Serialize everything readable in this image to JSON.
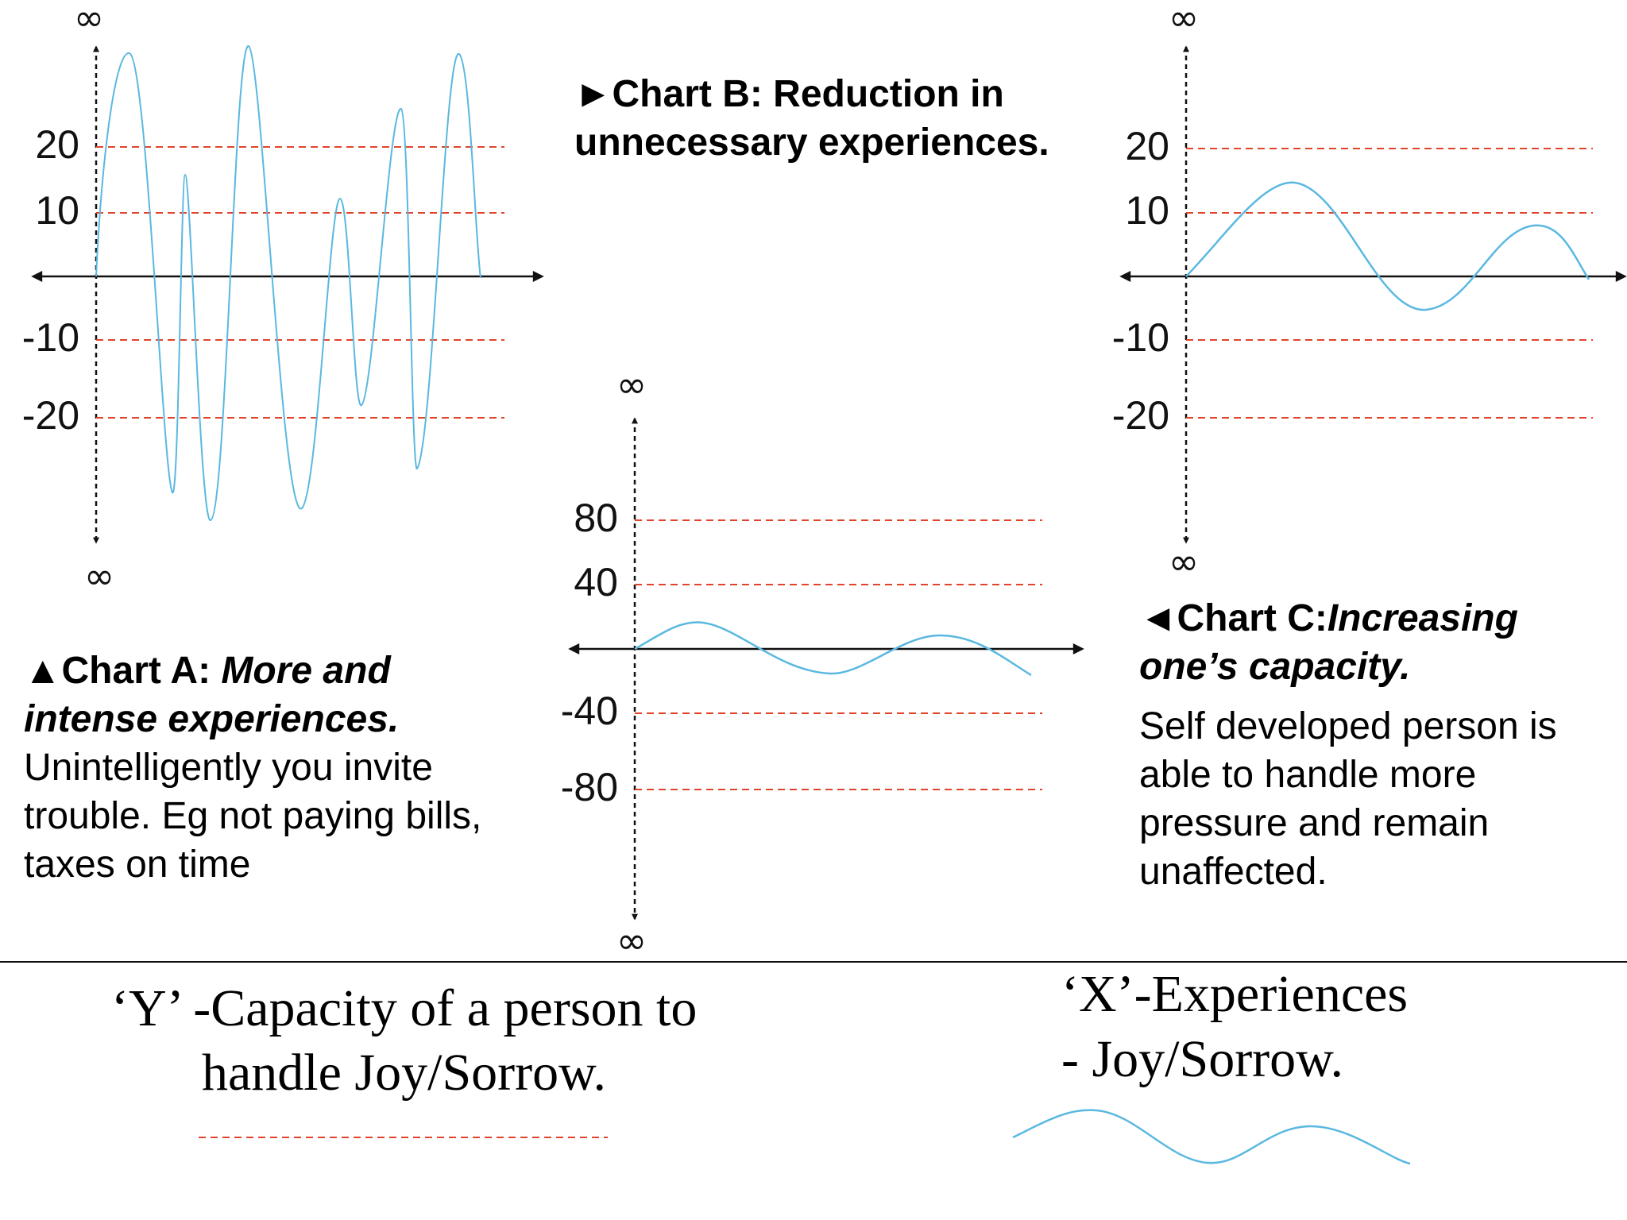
{
  "colors": {
    "gridline": "#e0442b",
    "curve": "#5ab8e0",
    "axis": "#111111"
  },
  "infinity_symbol": "∞",
  "charts": [
    {
      "id": "A",
      "marker": "▲",
      "title_bold": "Chart A:",
      "title_italic": "More and intense experiences.",
      "description": "Unintelligently you invite trouble. Eg not paying bills, taxes on time",
      "y_tick_labels": [
        "20",
        "10",
        "-10",
        "-20"
      ]
    },
    {
      "id": "B",
      "marker": "►",
      "title_bold": "Chart B: Reduction in unnecessary experiences.",
      "y_tick_labels": [
        "80",
        "40",
        "-40",
        "-80"
      ]
    },
    {
      "id": "C",
      "marker": "◄",
      "title_bold": "Chart C:",
      "title_italic": "Increasing one’s capacity.",
      "description": "Self developed person is able to handle more pressure and remain unaffected.",
      "y_tick_labels": [
        "20",
        "10",
        "-10",
        "-20"
      ]
    }
  ],
  "legend": {
    "y_line1": "‘Y’ -Capacity of a person to",
    "y_line2": "handle Joy/Sorrow.",
    "x_line1": "‘X’-Experiences",
    "x_line2": "- Joy/Sorrow."
  }
}
